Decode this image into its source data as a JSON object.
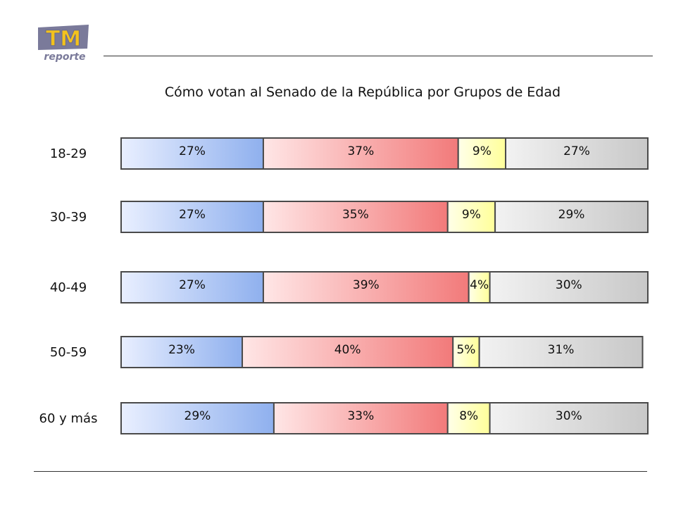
{
  "logo": {
    "main_text": "TM",
    "sub_text": "reporte"
  },
  "chart_data": {
    "type": "bar",
    "orientation": "horizontal",
    "stacked": true,
    "normalized_percent": true,
    "title": "Cómo votan al Senado de la República por Grupos de Edad",
    "categories": [
      "18-29",
      "30-39",
      "40-49",
      "50-59",
      "60 y más"
    ],
    "series": [
      {
        "color": "#8fb0ee",
        "values": [
          27,
          27,
          27,
          23,
          29
        ],
        "labels": [
          "27%",
          "27%",
          "27%",
          "23%",
          "29%"
        ]
      },
      {
        "color": "#f27a7a",
        "values": [
          37,
          35,
          39,
          40,
          33
        ],
        "labels": [
          "37%",
          "35%",
          "39%",
          "40%",
          "33%"
        ]
      },
      {
        "color": "#ffff9a",
        "values": [
          9,
          9,
          4,
          5,
          8
        ],
        "labels": [
          "9%",
          "9%",
          "4%",
          "5%",
          "8%"
        ]
      },
      {
        "color": "#c8c8c8",
        "values": [
          27,
          29,
          30,
          31,
          30
        ],
        "labels": [
          "27%",
          "29%",
          "30%",
          "31%",
          "30%"
        ]
      }
    ],
    "xlim": [
      0,
      100
    ],
    "legend": "none",
    "grid": false
  }
}
